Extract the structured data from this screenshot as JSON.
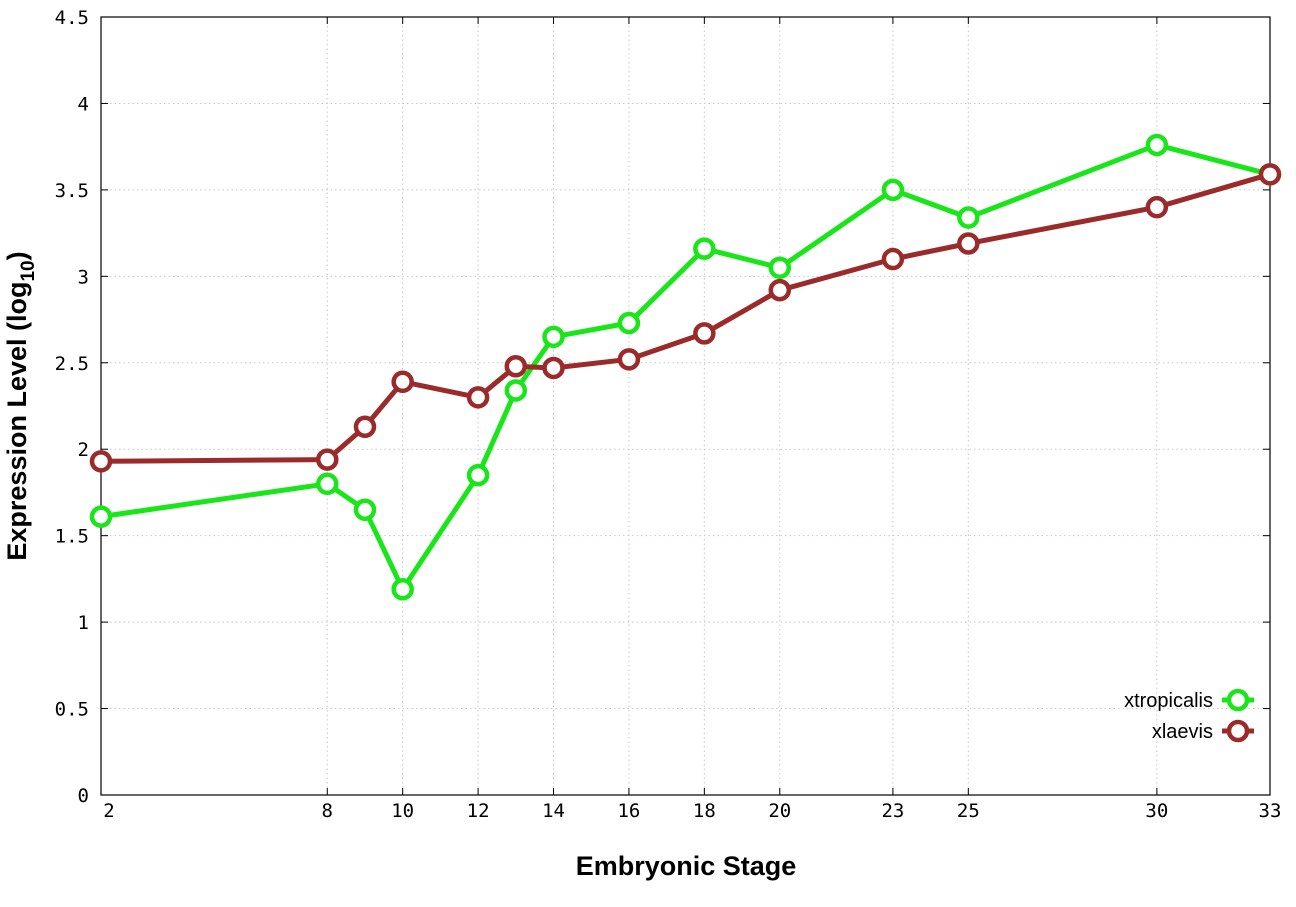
{
  "chart_data": {
    "type": "line",
    "xlabel": "Embryonic Stage",
    "ylabel": {
      "text": "Expression Level (log",
      "subscript": "10",
      "suffix": ")"
    },
    "x_ticks": [
      2,
      8,
      10,
      12,
      14,
      16,
      18,
      20,
      23,
      25,
      30,
      33
    ],
    "y_ticks": [
      "0",
      "0.5",
      "1",
      "1.5",
      "2",
      "2.5",
      "3",
      "3.5",
      "4",
      "4.5"
    ],
    "xlim": [
      2,
      33
    ],
    "ylim": [
      0,
      4.5
    ],
    "grid": true,
    "legend_position": "bottom-right",
    "series": [
      {
        "name": "xtropicalis",
        "color": "#19e619",
        "x": [
          2,
          8,
          9,
          10,
          12,
          13,
          14,
          16,
          18,
          20,
          23,
          25,
          30,
          33
        ],
        "y": [
          1.61,
          1.8,
          1.65,
          1.19,
          1.85,
          2.34,
          2.65,
          2.73,
          3.16,
          3.05,
          3.5,
          3.34,
          3.76,
          3.59
        ]
      },
      {
        "name": "xlaevis",
        "color": "#9b2a2a",
        "x": [
          2,
          8,
          9,
          10,
          12,
          13,
          14,
          16,
          18,
          20,
          23,
          25,
          30,
          33
        ],
        "y": [
          1.93,
          1.94,
          2.13,
          2.39,
          2.3,
          2.48,
          2.47,
          2.52,
          2.67,
          2.92,
          3.1,
          3.19,
          3.4,
          3.59
        ]
      }
    ]
  }
}
